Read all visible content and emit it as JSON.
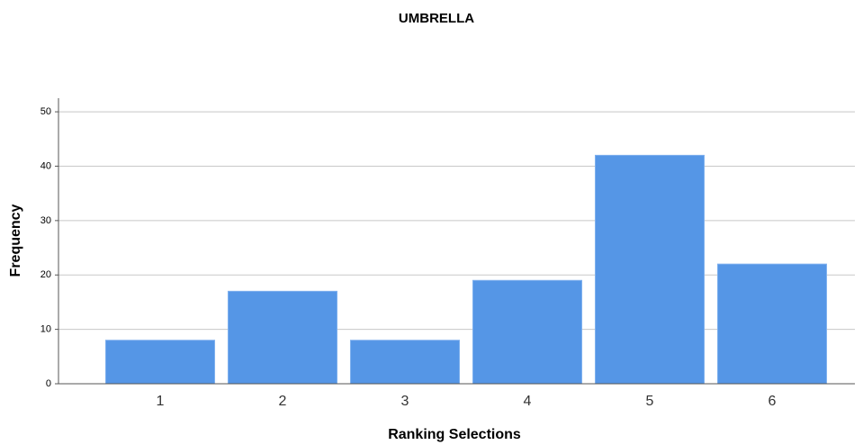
{
  "chart_data": {
    "type": "bar",
    "title": "UMBRELLA",
    "x_label": "Ranking Selections",
    "y_label": "Frequency",
    "categories": [
      "1",
      "2",
      "3",
      "4",
      "5",
      "6"
    ],
    "values": [
      8,
      17,
      8,
      19,
      42,
      22
    ],
    "color": "#5596e6",
    "ylim": [
      0,
      52.5
    ],
    "yticks": [
      0,
      10,
      20,
      30,
      40,
      50
    ],
    "grid": true
  }
}
